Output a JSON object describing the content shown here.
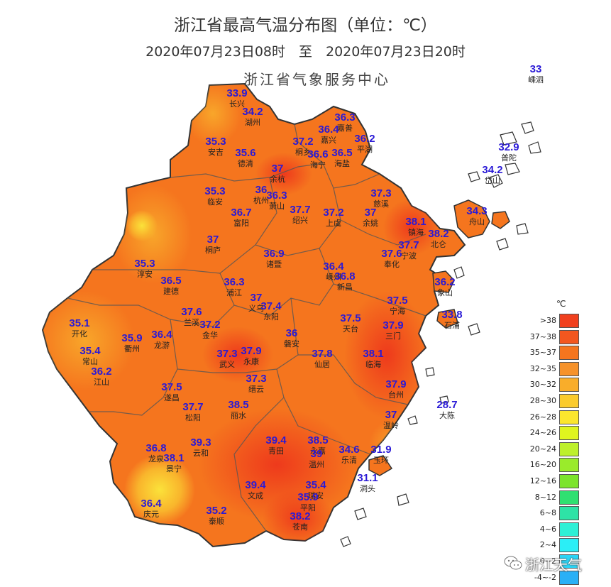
{
  "title": "浙江省最高气温分布图（单位：℃）",
  "subtitle": "2020年07月23日08时　至　2020年07月23日20时",
  "agency": "浙江省气象服务中心",
  "legend": {
    "unit": "℃",
    "items": [
      {
        "label": ">38",
        "color": "#f0401e"
      },
      {
        "label": "37~38",
        "color": "#f3571f"
      },
      {
        "label": "35~37",
        "color": "#f5751e"
      },
      {
        "label": "32~35",
        "color": "#f6922a"
      },
      {
        "label": "30~32",
        "color": "#f9ad2a"
      },
      {
        "label": "28~30",
        "color": "#fbcb2c"
      },
      {
        "label": "26~28",
        "color": "#fbe62d"
      },
      {
        "label": "24~26",
        "color": "#dff51f"
      },
      {
        "label": "20~24",
        "color": "#bdf02b"
      },
      {
        "label": "16~20",
        "color": "#9aeb2b"
      },
      {
        "label": "12~16",
        "color": "#7ce42c"
      },
      {
        "label": "8~12",
        "color": "#2fe071"
      },
      {
        "label": "6~8",
        "color": "#2ee3a6"
      },
      {
        "label": "4~6",
        "color": "#2ef0d6"
      },
      {
        "label": "2~4",
        "color": "#2beef6"
      },
      {
        "label": "0~2",
        "color": "#2ad5f6"
      },
      {
        "label": "-4~-2",
        "color": "#2ab0f6"
      }
    ]
  },
  "stations": [
    {
      "v": "33",
      "n": "嵊泗"
    },
    {
      "v": "33.9",
      "n": "长兴"
    },
    {
      "v": "34.2",
      "n": "湖州"
    },
    {
      "v": "36.3",
      "n": "嘉善"
    },
    {
      "v": "36.4",
      "n": "嘉兴"
    },
    {
      "v": "36.2",
      "n": "平湖"
    },
    {
      "v": "35.3",
      "n": "安吉"
    },
    {
      "v": "35.6",
      "n": "德清"
    },
    {
      "v": "37.2",
      "n": "桐乡"
    },
    {
      "v": "36.6",
      "n": "海宁"
    },
    {
      "v": "36.5",
      "n": "海盐"
    },
    {
      "v": "32.9",
      "n": "普陀"
    },
    {
      "v": "37",
      "n": "余杭"
    },
    {
      "v": "34.2",
      "n": "岱山"
    },
    {
      "v": "35.3",
      "n": "临安"
    },
    {
      "v": "36",
      "n": "杭州"
    },
    {
      "v": "36.3",
      "n": "萧山"
    },
    {
      "v": "37.3",
      "n": "慈溪"
    },
    {
      "v": "36.7",
      "n": "富阳"
    },
    {
      "v": "37.7",
      "n": "绍兴"
    },
    {
      "v": "37.2",
      "n": "上虞"
    },
    {
      "v": "37",
      "n": "余姚"
    },
    {
      "v": "34.3",
      "n": "舟山"
    },
    {
      "v": "38.1",
      "n": "镇海"
    },
    {
      "v": "38.2",
      "n": "北仑"
    },
    {
      "v": "37",
      "n": "桐庐"
    },
    {
      "v": "37.7",
      "n": "宁波"
    },
    {
      "v": "36.9",
      "n": "诸暨"
    },
    {
      "v": "37.6",
      "n": "奉化"
    },
    {
      "v": "35.3",
      "n": "淳安"
    },
    {
      "v": "36.4",
      "n": "嵊州"
    },
    {
      "v": "36.8",
      "n": "新昌"
    },
    {
      "v": "36.5",
      "n": "建德"
    },
    {
      "v": "36.3",
      "n": "浦江"
    },
    {
      "v": "36.2",
      "n": "象山"
    },
    {
      "v": "37.5",
      "n": "宁海"
    },
    {
      "v": "37",
      "n": "义乌"
    },
    {
      "v": "37.4",
      "n": "东阳"
    },
    {
      "v": "33.8",
      "n": "石浦"
    },
    {
      "v": "35.1",
      "n": "开化"
    },
    {
      "v": "37.6",
      "n": "兰溪"
    },
    {
      "v": "37.2",
      "n": "金华"
    },
    {
      "v": "37.5",
      "n": "天台"
    },
    {
      "v": "37.9",
      "n": "三门"
    },
    {
      "v": "35.9",
      "n": "衢州"
    },
    {
      "v": "36.4",
      "n": "龙游"
    },
    {
      "v": "36",
      "n": "磐安"
    },
    {
      "v": "35.4",
      "n": "常山"
    },
    {
      "v": "37.3",
      "n": "武义"
    },
    {
      "v": "37.9",
      "n": "永康"
    },
    {
      "v": "37.8",
      "n": "仙居"
    },
    {
      "v": "38.1",
      "n": "临海"
    },
    {
      "v": "36.2",
      "n": "江山"
    },
    {
      "v": "37.3",
      "n": "缙云"
    },
    {
      "v": "37.9",
      "n": "台州"
    },
    {
      "v": "37.5",
      "n": "遂昌"
    },
    {
      "v": "37.7",
      "n": "松阳"
    },
    {
      "v": "38.5",
      "n": "丽水"
    },
    {
      "v": "37",
      "n": "温岭"
    },
    {
      "v": "28.7",
      "n": "大陈"
    },
    {
      "v": "39.3",
      "n": "云和"
    },
    {
      "v": "39.4",
      "n": "青田"
    },
    {
      "v": "38.5",
      "n": "永嘉"
    },
    {
      "v": "36.8",
      "n": "龙泉"
    },
    {
      "v": "38.1",
      "n": "景宁"
    },
    {
      "v": "34.6",
      "n": "乐清"
    },
    {
      "v": "31.9",
      "n": "玉环"
    },
    {
      "v": "39",
      "n": "温州"
    },
    {
      "v": "31.1",
      "n": "洞头"
    },
    {
      "v": "39.4",
      "n": "文成"
    },
    {
      "v": "35.4",
      "n": "瑞安"
    },
    {
      "v": "35.9",
      "n": "平阳"
    },
    {
      "v": "36.4",
      "n": "庆元"
    },
    {
      "v": "35.2",
      "n": "泰顺"
    },
    {
      "v": "38.2",
      "n": "苍南"
    }
  ],
  "footer": "浙江天气",
  "footer_icon": "wechat-icon"
}
